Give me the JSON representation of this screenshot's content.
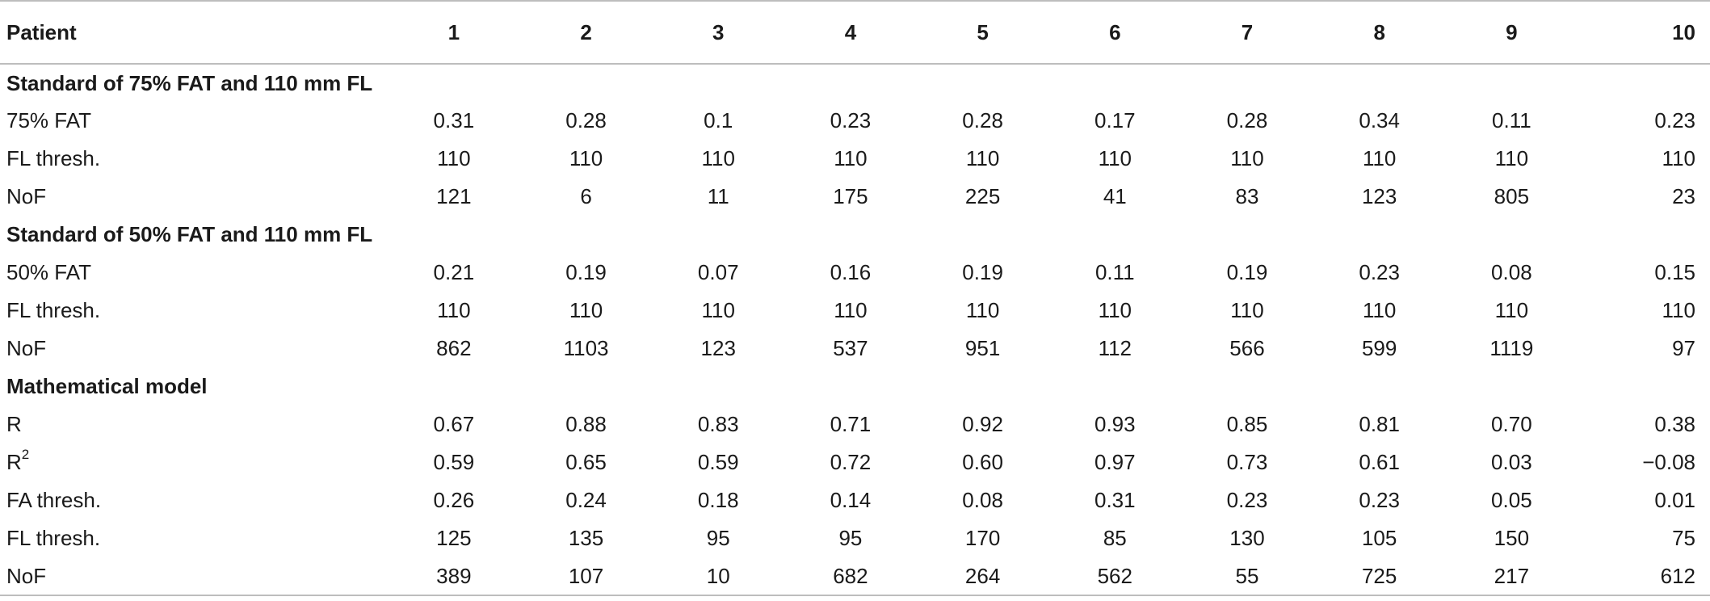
{
  "table": {
    "header": {
      "label": "Patient",
      "columns": [
        "1",
        "2",
        "3",
        "4",
        "5",
        "6",
        "7",
        "8",
        "9",
        "10"
      ]
    },
    "sections": [
      {
        "title": "Standard of 75% FAT and 110 mm FL",
        "rows": [
          {
            "label": "75% FAT",
            "values": [
              "0.31",
              "0.28",
              "0.1",
              "0.23",
              "0.28",
              "0.17",
              "0.28",
              "0.34",
              "0.11",
              "0.23"
            ]
          },
          {
            "label": "FL thresh.",
            "values": [
              "110",
              "110",
              "110",
              "110",
              "110",
              "110",
              "110",
              "110",
              "110",
              "110"
            ]
          },
          {
            "label": "NoF",
            "values": [
              "121",
              "6",
              "11",
              "175",
              "225",
              "41",
              "83",
              "123",
              "805",
              "23"
            ]
          }
        ]
      },
      {
        "title": "Standard of 50% FAT and 110 mm FL",
        "rows": [
          {
            "label": "50% FAT",
            "values": [
              "0.21",
              "0.19",
              "0.07",
              "0.16",
              "0.19",
              "0.11",
              "0.19",
              "0.23",
              "0.08",
              "0.15"
            ]
          },
          {
            "label": "FL thresh.",
            "values": [
              "110",
              "110",
              "110",
              "110",
              "110",
              "110",
              "110",
              "110",
              "110",
              "110"
            ]
          },
          {
            "label": "NoF",
            "values": [
              "862",
              "1103",
              "123",
              "537",
              "951",
              "112",
              "566",
              "599",
              "1119",
              "97"
            ]
          }
        ]
      },
      {
        "title": "Mathematical model",
        "rows": [
          {
            "label": "R",
            "values": [
              "0.67",
              "0.88",
              "0.83",
              "0.71",
              "0.92",
              "0.93",
              "0.85",
              "0.81",
              "0.70",
              "0.38"
            ]
          },
          {
            "label": "R",
            "sup": "2",
            "values": [
              "0.59",
              "0.65",
              "0.59",
              "0.72",
              "0.60",
              "0.97",
              "0.73",
              "0.61",
              "0.03",
              "−0.08"
            ]
          },
          {
            "label": "FA thresh.",
            "values": [
              "0.26",
              "0.24",
              "0.18",
              "0.14",
              "0.08",
              "0.31",
              "0.23",
              "0.23",
              "0.05",
              "0.01"
            ]
          },
          {
            "label": "FL thresh.",
            "values": [
              "125",
              "135",
              "95",
              "95",
              "170",
              "85",
              "130",
              "105",
              "150",
              "75"
            ]
          },
          {
            "label": "NoF",
            "values": [
              "389",
              "107",
              "10",
              "682",
              "264",
              "562",
              "55",
              "725",
              "217",
              "612"
            ]
          }
        ]
      }
    ]
  }
}
